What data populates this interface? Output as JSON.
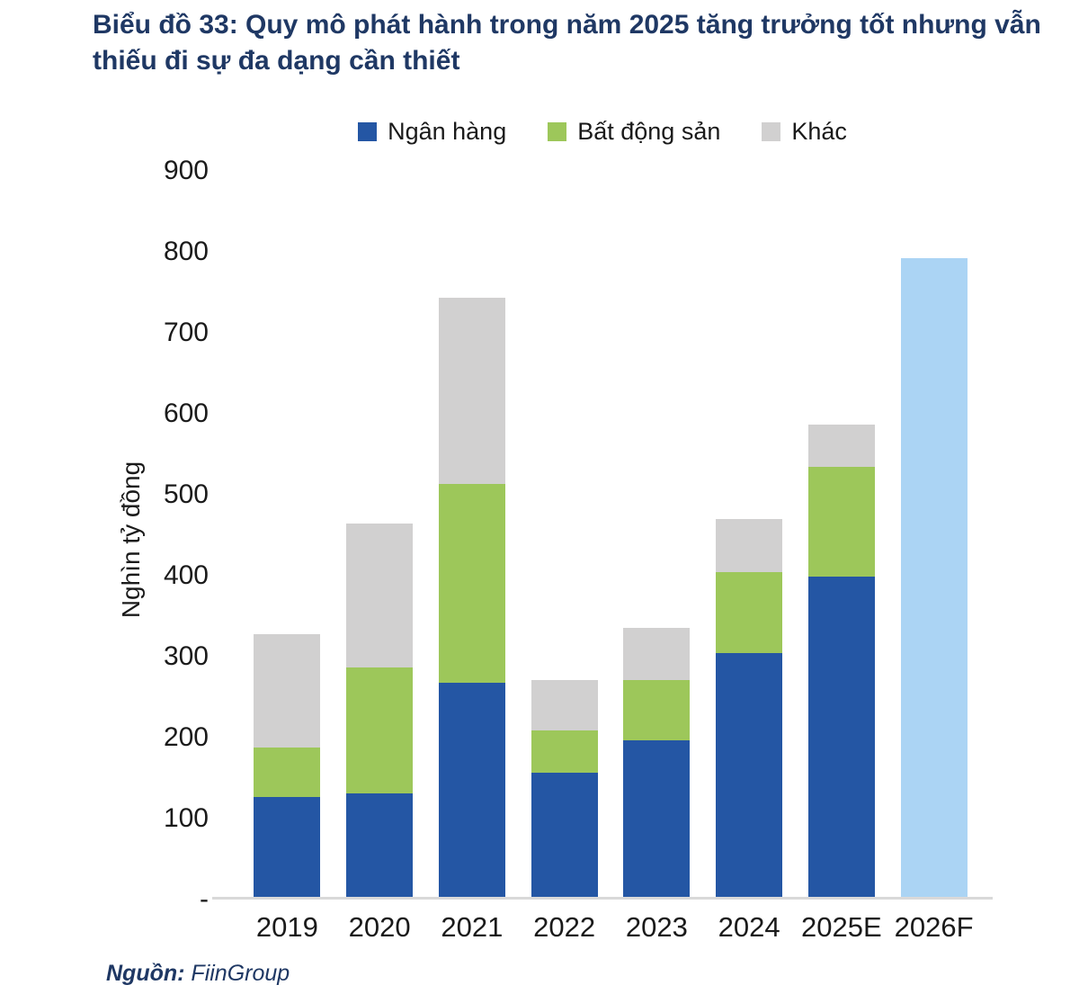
{
  "figure": {
    "title": {
      "line1": "Biểu đồ 33: Quy mô phát hành trong năm 2025 tăng trưởng tốt nhưng vẫn",
      "line2": "thiếu đi sự đa dạng cần thiết"
    },
    "title_color": "#1F3864",
    "source_label": "Nguồn:",
    "source_value": "FiinGroup"
  },
  "chart_data": {
    "type": "bar",
    "stacked": true,
    "title": "Biểu đồ 33: Quy mô phát hành trong năm 2025 tăng trưởng tốt nhưng vẫn thiếu đi sự đa dạng cần thiết",
    "ylabel": "Nghìn tỷ đồng",
    "xlabel": "",
    "ylim": [
      0,
      900
    ],
    "grid": false,
    "legend_position": "top-center",
    "categories": [
      "2019",
      "2020",
      "2021",
      "2022",
      "2023",
      "2024",
      "2025E",
      "2026F"
    ],
    "series": [
      {
        "name": "Ngân hàng",
        "color": "#2456A4",
        "values": [
          124,
          129,
          266,
          155,
          194,
          302,
          397,
          0
        ]
      },
      {
        "name": "Bất động sản",
        "color": "#9DC75A",
        "values": [
          62,
          155,
          245,
          52,
          75,
          100,
          135,
          0
        ]
      },
      {
        "name": "Khác",
        "color": "#D1D0D0",
        "values": [
          140,
          178,
          230,
          62,
          64,
          66,
          53,
          0
        ]
      }
    ],
    "forecast_bar": {
      "category": "2026F",
      "value": 790,
      "color": "#ABD4F4"
    },
    "totals": [
      326,
      462,
      741,
      269,
      333,
      468,
      585,
      790
    ],
    "yticks": [
      {
        "label": "900",
        "value": 900
      },
      {
        "label": "800",
        "value": 800
      },
      {
        "label": "700",
        "value": 700
      },
      {
        "label": "600",
        "value": 600
      },
      {
        "label": "500",
        "value": 500
      },
      {
        "label": "400",
        "value": 400
      },
      {
        "label": "300",
        "value": 300
      },
      {
        "label": "200",
        "value": 200
      },
      {
        "label": "100",
        "value": 100
      },
      {
        "label": "-",
        "value": 0
      }
    ],
    "axis_line_color": "#D9D9D9"
  }
}
